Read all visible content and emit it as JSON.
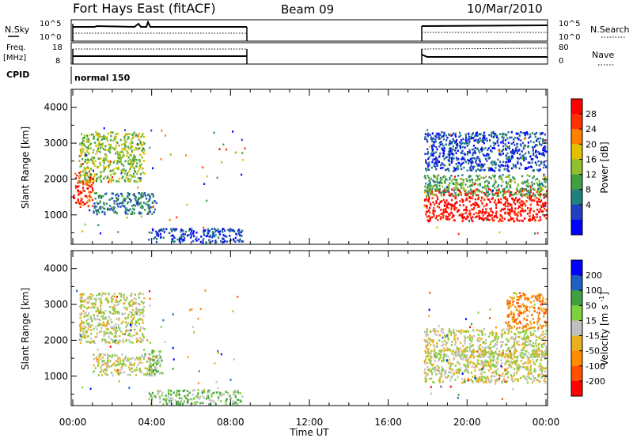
{
  "header": {
    "station": "Fort Hays East (fitACF)",
    "beam": "Beam 09",
    "date": "10/Mar/2010"
  },
  "status_panels": {
    "nsky_label": "N.Sky",
    "nsky_top": "10^5",
    "nsky_bottom": "10^0",
    "nsearch_label": "N.Search",
    "nsearch_top": "10^5",
    "nsearch_bottom": "10^0",
    "freq_label": "Freq.",
    "freq_unit": "[MHz]",
    "freq_top": "18",
    "freq_bottom": "8",
    "nave_label": "Nave",
    "nave_top": "80",
    "nave_bottom": "0",
    "cpid_label": "CPID",
    "cpid_value": "normal 150"
  },
  "chart_data": [
    {
      "type": "heatmap",
      "title": "Power",
      "ylabel": "Slant Range [km]",
      "ylim": [
        180,
        4500
      ],
      "yticks": [
        "4000",
        "3000",
        "2000",
        "1000"
      ],
      "xlim_hours": [
        0,
        24
      ],
      "colorbar": {
        "label": "Power [dB]",
        "ticks": [
          "28",
          "24",
          "20",
          "16",
          "12",
          "8",
          "4"
        ],
        "colors": [
          "#0000ff",
          "#2040c0",
          "#208080",
          "#40a040",
          "#90c030",
          "#e0c000",
          "#ff8000",
          "#ff3000",
          "#ff0000"
        ]
      },
      "regions": [
        {
          "t0": 0.0,
          "t1": 1.0,
          "r0": 1200,
          "r1": 2200,
          "level": 7
        },
        {
          "t0": 0.3,
          "t1": 3.6,
          "r0": 1900,
          "r1": 3300,
          "level": 4
        },
        {
          "t0": 1.0,
          "t1": 4.2,
          "r0": 1000,
          "r1": 1600,
          "level": 2
        },
        {
          "t0": 3.8,
          "t1": 8.6,
          "r0": 200,
          "r1": 600,
          "level": 1
        },
        {
          "t0": 17.8,
          "t1": 24.0,
          "r0": 800,
          "r1": 1700,
          "level": 8
        },
        {
          "t0": 17.8,
          "t1": 24.0,
          "r0": 1500,
          "r1": 2100,
          "level": 3
        },
        {
          "t0": 17.8,
          "t1": 24.0,
          "r0": 2200,
          "r1": 3300,
          "level": 1
        }
      ]
    },
    {
      "type": "heatmap",
      "title": "Velocity",
      "ylabel": "Slant Range [km]",
      "ylim": [
        180,
        4500
      ],
      "yticks": [
        "4000",
        "3000",
        "2000",
        "1000"
      ],
      "xlim_hours": [
        0,
        24
      ],
      "colorbar": {
        "label": "Velocity [m s^-1]",
        "ticks": [
          "200",
          "100",
          "50",
          "15",
          "-15",
          "-50",
          "-100",
          "-200"
        ],
        "colors": [
          "#ff0000",
          "#ff5000",
          "#ff8c00",
          "#e8b020",
          "#c0c0c0",
          "#80d040",
          "#40a040",
          "#2060c0",
          "#0000ff"
        ]
      },
      "regions": [
        {
          "t0": 0.3,
          "t1": 3.6,
          "r0": 1900,
          "r1": 3300,
          "level": 4
        },
        {
          "t0": 1.0,
          "t1": 4.2,
          "r0": 1000,
          "r1": 1600,
          "level": 4
        },
        {
          "t0": 3.8,
          "t1": 4.6,
          "r0": 1000,
          "r1": 1700,
          "level": 5
        },
        {
          "t0": 3.8,
          "t1": 8.6,
          "r0": 200,
          "r1": 600,
          "level": 5
        },
        {
          "t0": 17.8,
          "t1": 24.0,
          "r0": 800,
          "r1": 1700,
          "level": 4
        },
        {
          "t0": 17.8,
          "t1": 24.0,
          "r0": 1500,
          "r1": 2300,
          "level": 4
        },
        {
          "t0": 22.0,
          "t1": 24.0,
          "r0": 2300,
          "r1": 3300,
          "level": 2
        }
      ]
    }
  ],
  "xaxis": {
    "label": "Time UT",
    "ticks": [
      "00:00",
      "04:00",
      "08:00",
      "12:00",
      "16:00",
      "20:00",
      "00:00"
    ]
  }
}
